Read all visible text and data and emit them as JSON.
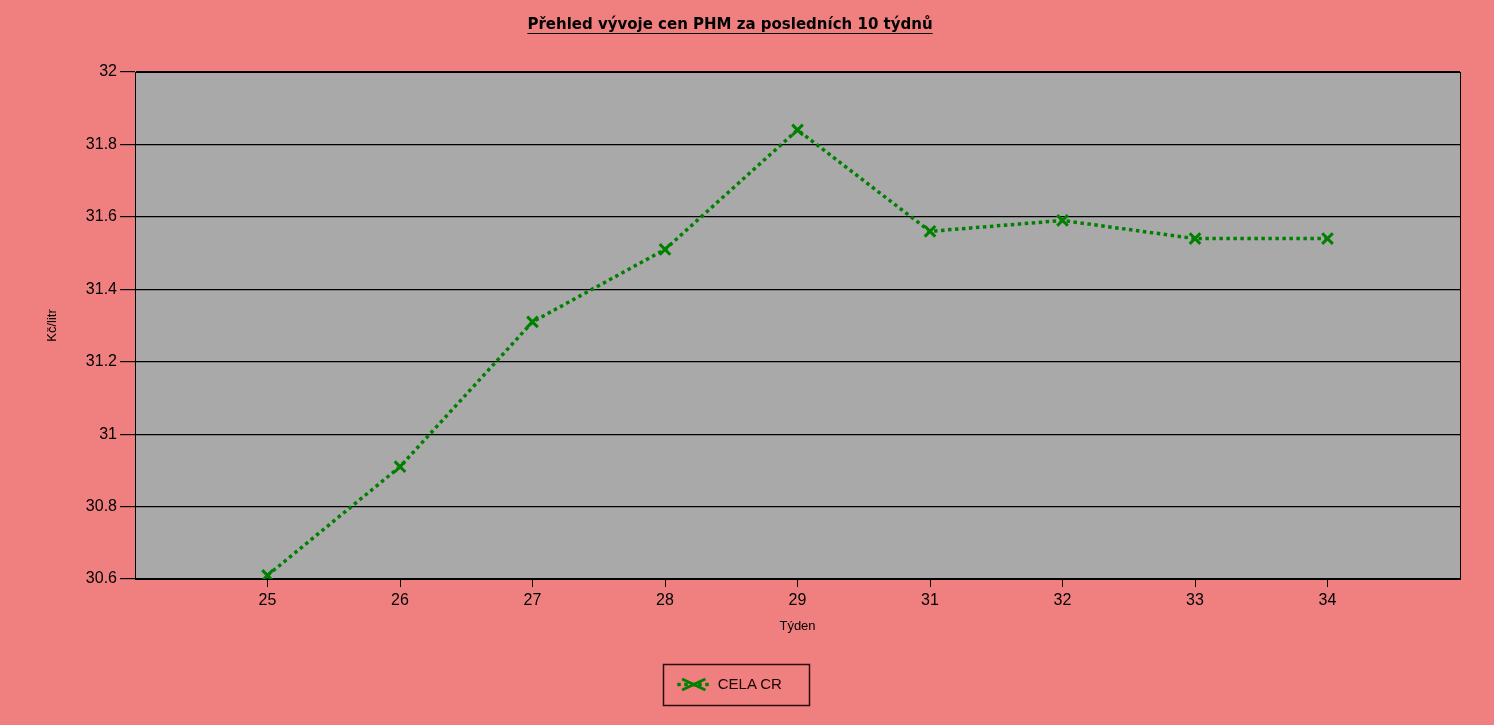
{
  "chart_data": {
    "type": "line",
    "title": "Přehled vývoje cen PHM za posledních 10 týdnů",
    "xlabel": "Týden",
    "ylabel": "Kč/litr",
    "categories": [
      "25",
      "26",
      "27",
      "28",
      "29",
      "31",
      "32",
      "33",
      "34"
    ],
    "series": [
      {
        "name": "CELA CR",
        "color": "#008000",
        "values": [
          30.61,
          30.91,
          31.31,
          31.51,
          31.84,
          31.56,
          31.59,
          31.54,
          31.54
        ]
      }
    ],
    "ylim": [
      30.6,
      32
    ],
    "yticks": [
      30.6,
      30.8,
      31,
      31.2,
      31.4,
      31.6,
      31.8,
      32
    ],
    "grid": "y",
    "legend": "bottom",
    "marker": "cross",
    "line_style": "dotted"
  }
}
